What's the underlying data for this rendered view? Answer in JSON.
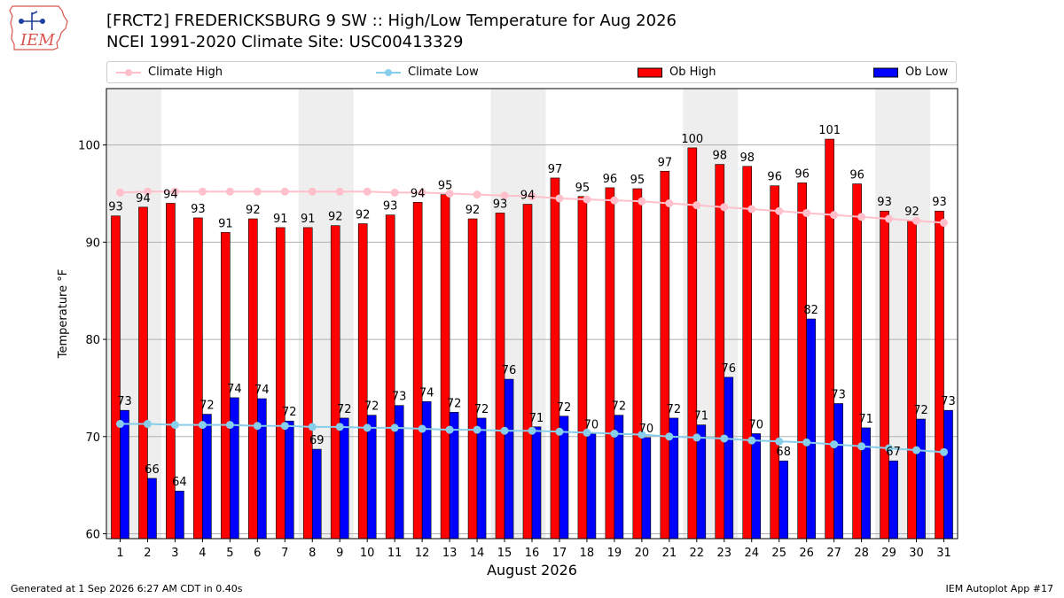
{
  "header": {
    "title_line1": "[FRCT2] FREDERICKSBURG 9 SW :: High/Low Temperature for Aug 2026",
    "title_line2": "NCEI 1991-2020 Climate Site: USC00413329",
    "logo_text": "IEM"
  },
  "footer": {
    "generated": "Generated at 1 Sep 2026 6:27 AM CDT in 0.40s",
    "app": "IEM Autoplot App #17"
  },
  "colors": {
    "ob_high": "#ff0000",
    "ob_low": "#0000ff",
    "climate_high": "#ffc0cb",
    "climate_low": "#87ceeb",
    "weekend_band": "#eeeeee",
    "grid": "#b0b0b0"
  },
  "chart_data": {
    "type": "bar",
    "xlabel": "August 2026",
    "ylabel": "Temperature °F",
    "ylim": [
      59.5,
      105.8
    ],
    "yticks": [
      60,
      70,
      80,
      90,
      100
    ],
    "grid": "horizontal",
    "legend_position": "top",
    "categories": [
      "1",
      "2",
      "3",
      "4",
      "5",
      "6",
      "7",
      "8",
      "9",
      "10",
      "11",
      "12",
      "13",
      "14",
      "15",
      "16",
      "17",
      "18",
      "19",
      "20",
      "21",
      "22",
      "23",
      "24",
      "25",
      "26",
      "27",
      "28",
      "29",
      "30",
      "31"
    ],
    "shaded_days": [
      1,
      8,
      15,
      22,
      29
    ],
    "series": [
      {
        "name": "Climate High",
        "kind": "line",
        "values": [
          95.1,
          95.2,
          95.2,
          95.2,
          95.2,
          95.2,
          95.2,
          95.2,
          95.2,
          95.2,
          95.1,
          95.1,
          95.0,
          94.9,
          94.8,
          94.7,
          94.5,
          94.4,
          94.3,
          94.2,
          94.0,
          93.8,
          93.6,
          93.4,
          93.2,
          93.0,
          92.8,
          92.6,
          92.4,
          92.2,
          92.0
        ]
      },
      {
        "name": "Climate Low",
        "kind": "line",
        "values": [
          71.3,
          71.3,
          71.2,
          71.2,
          71.2,
          71.1,
          71.1,
          71.0,
          71.0,
          70.9,
          70.9,
          70.8,
          70.7,
          70.7,
          70.6,
          70.6,
          70.5,
          70.4,
          70.3,
          70.2,
          70.0,
          69.9,
          69.8,
          69.6,
          69.5,
          69.4,
          69.2,
          69.0,
          68.8,
          68.6,
          68.4
        ]
      },
      {
        "name": "Ob High",
        "kind": "bar",
        "values": [
          93,
          94,
          94,
          93,
          91,
          92,
          91,
          91,
          92,
          92,
          93,
          94,
          95,
          92,
          93,
          94,
          97,
          95,
          96,
          95,
          97,
          100,
          98,
          98,
          96,
          96,
          101,
          96,
          93,
          92,
          93
        ],
        "plot_values": [
          92.7,
          93.6,
          94.0,
          92.5,
          91.0,
          92.4,
          91.5,
          91.5,
          91.7,
          91.9,
          92.8,
          94.1,
          94.9,
          92.4,
          93.0,
          93.9,
          96.6,
          94.7,
          95.6,
          95.5,
          97.3,
          99.7,
          98.0,
          97.8,
          95.8,
          96.1,
          100.6,
          96.0,
          93.2,
          92.2,
          93.2
        ]
      },
      {
        "name": "Ob Low",
        "kind": "bar",
        "values": [
          73,
          66,
          64,
          72,
          74,
          74,
          72,
          69,
          72,
          72,
          73,
          74,
          72,
          72,
          76,
          71,
          72,
          70,
          72,
          70,
          72,
          71,
          76,
          70,
          68,
          82,
          73,
          71,
          67,
          72,
          73
        ],
        "plot_values": [
          72.7,
          65.7,
          64.4,
          72.3,
          74.0,
          73.9,
          71.6,
          68.7,
          71.9,
          72.2,
          73.2,
          73.6,
          72.5,
          71.9,
          75.9,
          71.0,
          72.1,
          70.3,
          72.2,
          69.9,
          71.9,
          71.2,
          76.1,
          70.3,
          67.5,
          82.1,
          73.4,
          70.9,
          67.5,
          71.8,
          72.7
        ]
      }
    ]
  }
}
